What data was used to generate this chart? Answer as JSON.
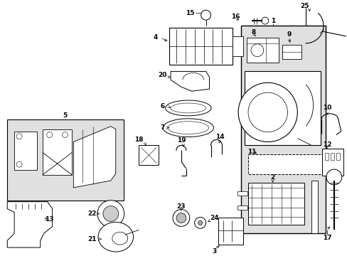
{
  "bg_color": "#ffffff",
  "line_color": "#000000",
  "shaded_color": "#e0e0e0"
}
